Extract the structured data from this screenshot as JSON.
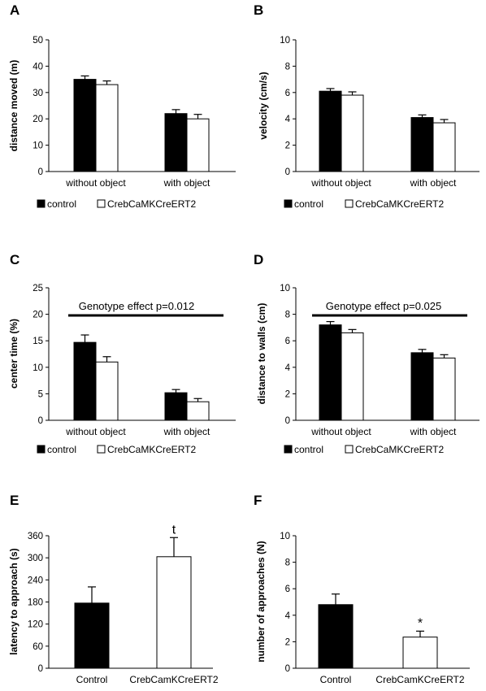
{
  "chart_data": [
    {
      "id": "A",
      "letter": "A",
      "type": "bar",
      "ylabel": "distance moved (m)",
      "ylim": [
        0,
        50
      ],
      "yticks": [
        0,
        10,
        20,
        30,
        40,
        50
      ],
      "categories": [
        "without object",
        "with object"
      ],
      "series": [
        {
          "name": "control",
          "color": "#000000",
          "values": [
            35,
            22
          ],
          "errors": [
            1.3,
            1.5
          ]
        },
        {
          "name": "CrebCaMKCreERT2",
          "color": "#ffffff",
          "values": [
            33,
            20
          ],
          "errors": [
            1.4,
            1.7
          ]
        }
      ],
      "legend": "bottom"
    },
    {
      "id": "B",
      "letter": "B",
      "type": "bar",
      "ylabel": "velocity (cm/s)",
      "ylim": [
        0,
        10
      ],
      "yticks": [
        0,
        2,
        4,
        6,
        8,
        10
      ],
      "categories": [
        "without object",
        "with object"
      ],
      "series": [
        {
          "name": "control",
          "color": "#000000",
          "values": [
            6.1,
            4.1
          ],
          "errors": [
            0.2,
            0.2
          ]
        },
        {
          "name": "CrebCaMKCreERT2",
          "color": "#ffffff",
          "values": [
            5.8,
            3.7
          ],
          "errors": [
            0.25,
            0.25
          ]
        }
      ],
      "legend": "bottom"
    },
    {
      "id": "C",
      "letter": "C",
      "type": "bar",
      "ylabel": "center time (%)",
      "ylim": [
        0,
        25
      ],
      "yticks": [
        0,
        5,
        10,
        15,
        20,
        25
      ],
      "categories": [
        "without object",
        "with object"
      ],
      "series": [
        {
          "name": "control",
          "color": "#000000",
          "values": [
            14.7,
            5.2
          ],
          "errors": [
            1.4,
            0.6
          ]
        },
        {
          "name": "CrebCaMKCreERT2",
          "color": "#ffffff",
          "values": [
            11,
            3.5
          ],
          "errors": [
            1.0,
            0.6
          ]
        }
      ],
      "annotation": "Genotype effect p=0.012",
      "legend": "bottom"
    },
    {
      "id": "D",
      "letter": "D",
      "type": "bar",
      "ylabel": "distance to walls (cm)",
      "ylim": [
        0,
        10
      ],
      "yticks": [
        0,
        2,
        4,
        6,
        8,
        10
      ],
      "categories": [
        "without object",
        "with object"
      ],
      "series": [
        {
          "name": "control",
          "color": "#000000",
          "values": [
            7.2,
            5.1
          ],
          "errors": [
            0.25,
            0.25
          ]
        },
        {
          "name": "CrebCaMKCreERT2",
          "color": "#ffffff",
          "values": [
            6.6,
            4.7
          ],
          "errors": [
            0.25,
            0.25
          ]
        }
      ],
      "annotation": "Genotype effect p=0.025",
      "legend": "bottom"
    },
    {
      "id": "E",
      "letter": "E",
      "type": "bar",
      "ylabel": "latency to approach (s)",
      "ylim": [
        0,
        360
      ],
      "yticks": [
        0,
        60,
        120,
        180,
        240,
        300,
        360
      ],
      "categories": [
        "Control",
        "CrebCamKCreERT2"
      ],
      "values": [
        177,
        303
      ],
      "errors": [
        44,
        52
      ],
      "colors": [
        "#000000",
        "#ffffff"
      ],
      "significance": [
        "",
        "t"
      ]
    },
    {
      "id": "F",
      "letter": "F",
      "type": "bar",
      "ylabel": "number of approaches (N)",
      "ylim": [
        0,
        10
      ],
      "yticks": [
        0,
        2,
        4,
        6,
        8,
        10
      ],
      "categories": [
        "Control",
        "CrebCamKCreERT2"
      ],
      "values": [
        4.8,
        2.35
      ],
      "errors": [
        0.8,
        0.45
      ],
      "colors": [
        "#000000",
        "#ffffff"
      ],
      "significance": [
        "",
        "*"
      ]
    }
  ]
}
